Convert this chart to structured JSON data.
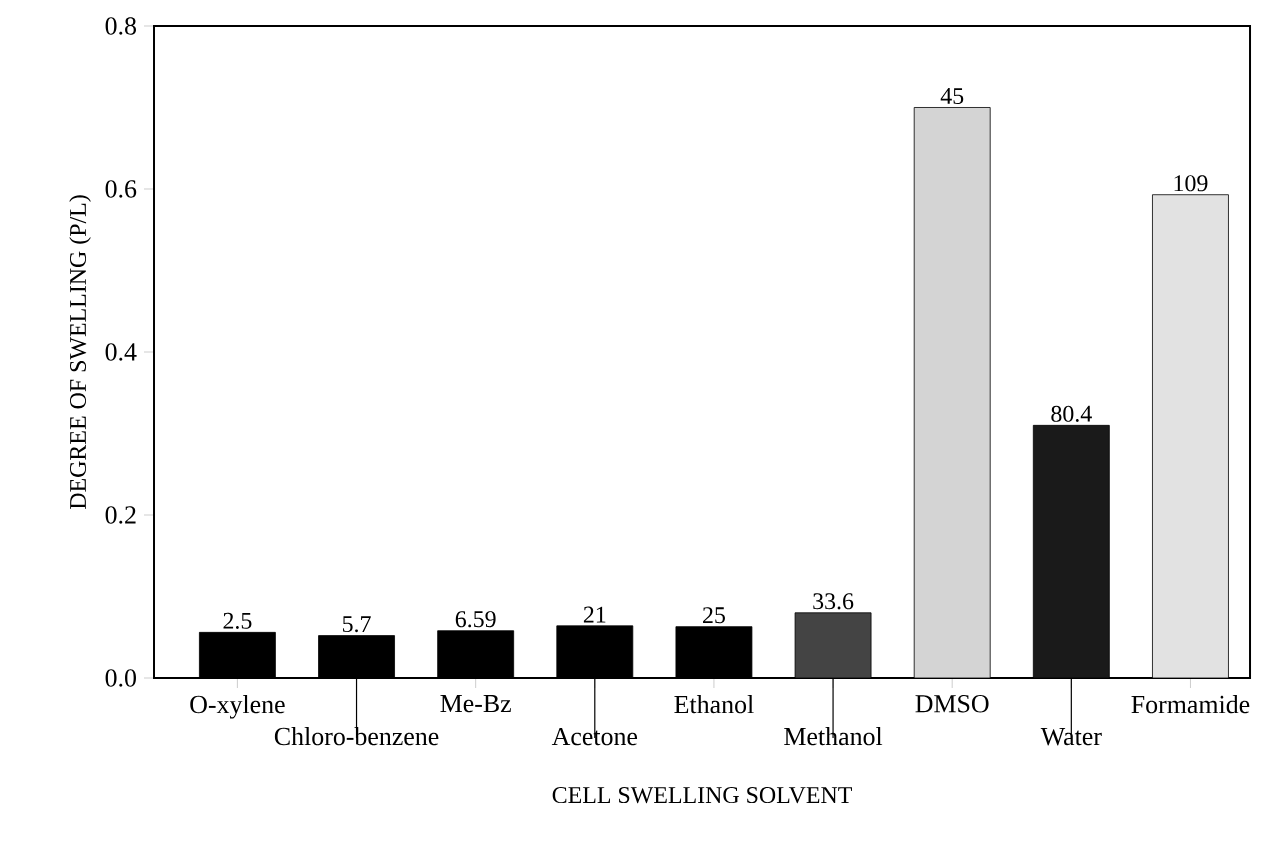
{
  "chart_data": {
    "type": "bar",
    "xlabel": "CELL SWELLING SOLVENT",
    "ylabel": "DEGREE OF SWELLING   (P/L)",
    "categories": [
      "O-xylene",
      "Chloro-benzene",
      "Me-Bz",
      "Acetone",
      "Ethanol",
      "Methanol",
      "DMSO",
      "Water",
      "Formamide"
    ],
    "values": [
      0.056,
      0.052,
      0.058,
      0.064,
      0.063,
      0.08,
      0.7,
      0.31,
      0.593
    ],
    "annotations": [
      {
        "text": "2.5",
        "x": "O-xylene",
        "y": 0.056
      },
      {
        "text": "5.7",
        "x": "Chloro-benzene",
        "y": 0.052
      },
      {
        "text": "6.59",
        "x": "Me-Bz",
        "y": 0.058
      },
      {
        "text": "21",
        "x": "Acetone",
        "y": 0.064
      },
      {
        "text": "25",
        "x": "Ethanol",
        "y": 0.063
      },
      {
        "text": "33.6",
        "x": "Methanol",
        "y": 0.08
      },
      {
        "text": "45",
        "x": "DMSO",
        "y": 0.7
      },
      {
        "text": "80.4",
        "x": "Water",
        "y": 0.31
      },
      {
        "text": "109",
        "x": "Formamide",
        "y": 0.593
      }
    ],
    "colors": [
      "#000000",
      "#000000",
      "#000000",
      "#000000",
      "#000000",
      "#444444",
      "#d4d4d4",
      "#1a1a1a",
      "#e2e2e2"
    ],
    "ylim": [
      0,
      0.8
    ],
    "yticks": [
      {
        "value": 0,
        "label": "0.0"
      },
      0.2,
      0.4,
      0.6,
      0.8
    ]
  }
}
